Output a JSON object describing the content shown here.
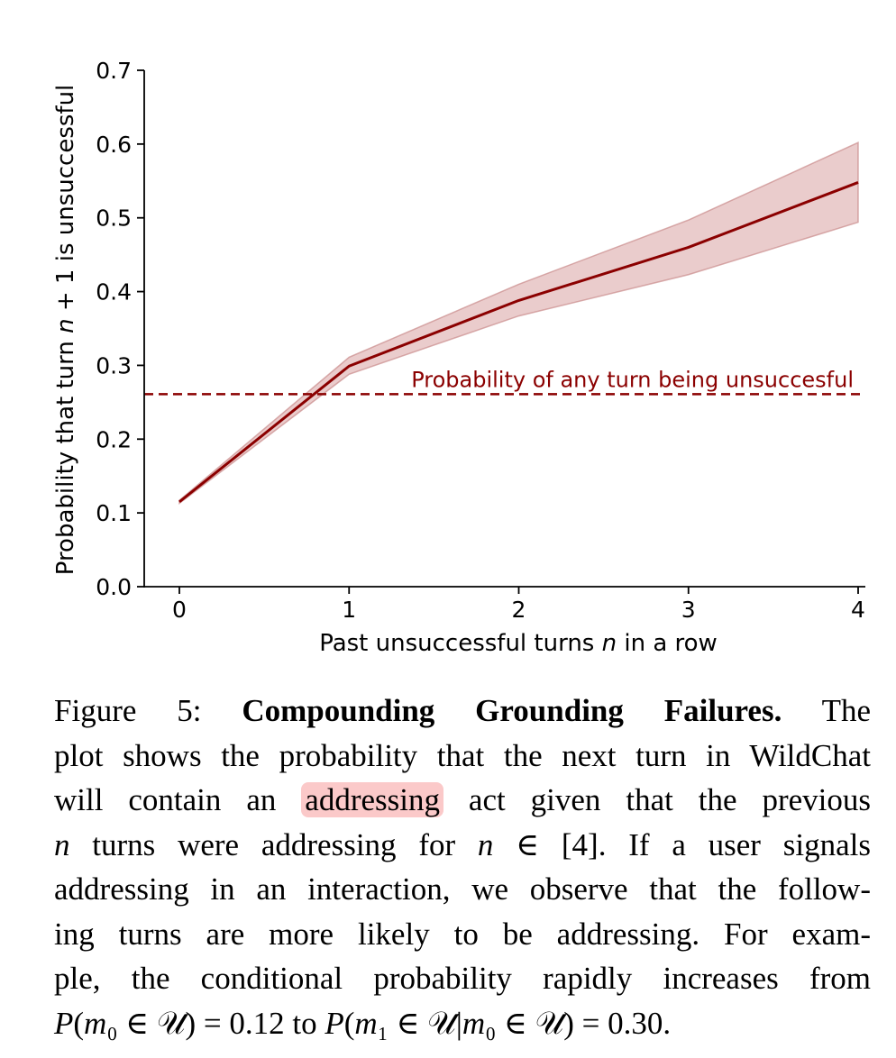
{
  "chart_data": {
    "type": "line",
    "x": [
      0,
      1,
      2,
      3,
      4
    ],
    "series": [
      {
        "name": "Probability that turn n + 1 is unsuccessful",
        "values": [
          0.115,
          0.299,
          0.388,
          0.46,
          0.548
        ],
        "lower": [
          0.113,
          0.288,
          0.367,
          0.423,
          0.494
        ],
        "upper": [
          0.117,
          0.311,
          0.41,
          0.497,
          0.602
        ],
        "color": "#8b0000",
        "band_color": "#d9a3a3"
      }
    ],
    "reference_line": {
      "value": 0.261,
      "label": "Probability of any turn being unsuccesful",
      "style": "dashed",
      "color": "#8b0000"
    },
    "xticks": [
      "0",
      "1",
      "2",
      "3",
      "4"
    ],
    "yticks": [
      "0.0",
      "0.1",
      "0.2",
      "0.3",
      "0.4",
      "0.5",
      "0.6",
      "0.7"
    ],
    "xlabel": {
      "before": "Past unsuccessful turns ",
      "var": "n",
      "after": " in a row"
    },
    "ylabel": {
      "before": "Probability that turn ",
      "var": "n",
      "after": " + 1 is unsuccessful"
    },
    "xlim": [
      -0.2,
      4.05
    ],
    "ylim": [
      0.0,
      0.7
    ],
    "grid": false
  },
  "caption": {
    "lines": [
      [
        {
          "t": "Figure 5: ",
          "s": "fig-label"
        },
        {
          "t": "Compounding Grounding Failures.",
          "s": "bold"
        },
        {
          "t": " The",
          "s": ""
        }
      ],
      [
        {
          "t": "plot shows the probability that the next turn in WildChat",
          "s": ""
        }
      ],
      [
        {
          "t": "will contain an ",
          "s": ""
        },
        {
          "t": "addressing",
          "s": "hl"
        },
        {
          "t": " act given that the previous",
          "s": ""
        }
      ],
      [
        {
          "t": "n",
          "s": "m"
        },
        {
          "t": " turns were addressing for ",
          "s": ""
        },
        {
          "t": "n",
          "s": "m"
        },
        {
          "t": " ∈ [4]. If a user signals",
          "s": ""
        }
      ],
      [
        {
          "t": "addressing in an interaction, we observe that the follow-",
          "s": ""
        }
      ],
      [
        {
          "t": "ing turns are more likely to be addressing. For exam-",
          "s": ""
        }
      ],
      [
        {
          "t": "ple, the conditional probability rapidly increases from",
          "s": ""
        }
      ],
      [
        {
          "t": "P",
          "s": "m"
        },
        {
          "t": "(",
          "s": ""
        },
        {
          "t": "m",
          "s": "m"
        },
        {
          "t": "₀ ∈ ",
          "s": ""
        },
        {
          "t": "𝒰",
          "s": ""
        },
        {
          "t": ") = 0.12 to ",
          "s": ""
        },
        {
          "t": "P",
          "s": "m"
        },
        {
          "t": "(",
          "s": ""
        },
        {
          "t": "m",
          "s": "m"
        },
        {
          "t": "₁ ∈ ",
          "s": ""
        },
        {
          "t": "𝒰",
          "s": ""
        },
        {
          "t": "|",
          "s": ""
        },
        {
          "t": "m",
          "s": "m"
        },
        {
          "t": "₀ ∈ ",
          "s": ""
        },
        {
          "t": "𝒰",
          "s": ""
        },
        {
          "t": ") = 0.30.",
          "s": ""
        }
      ]
    ]
  }
}
